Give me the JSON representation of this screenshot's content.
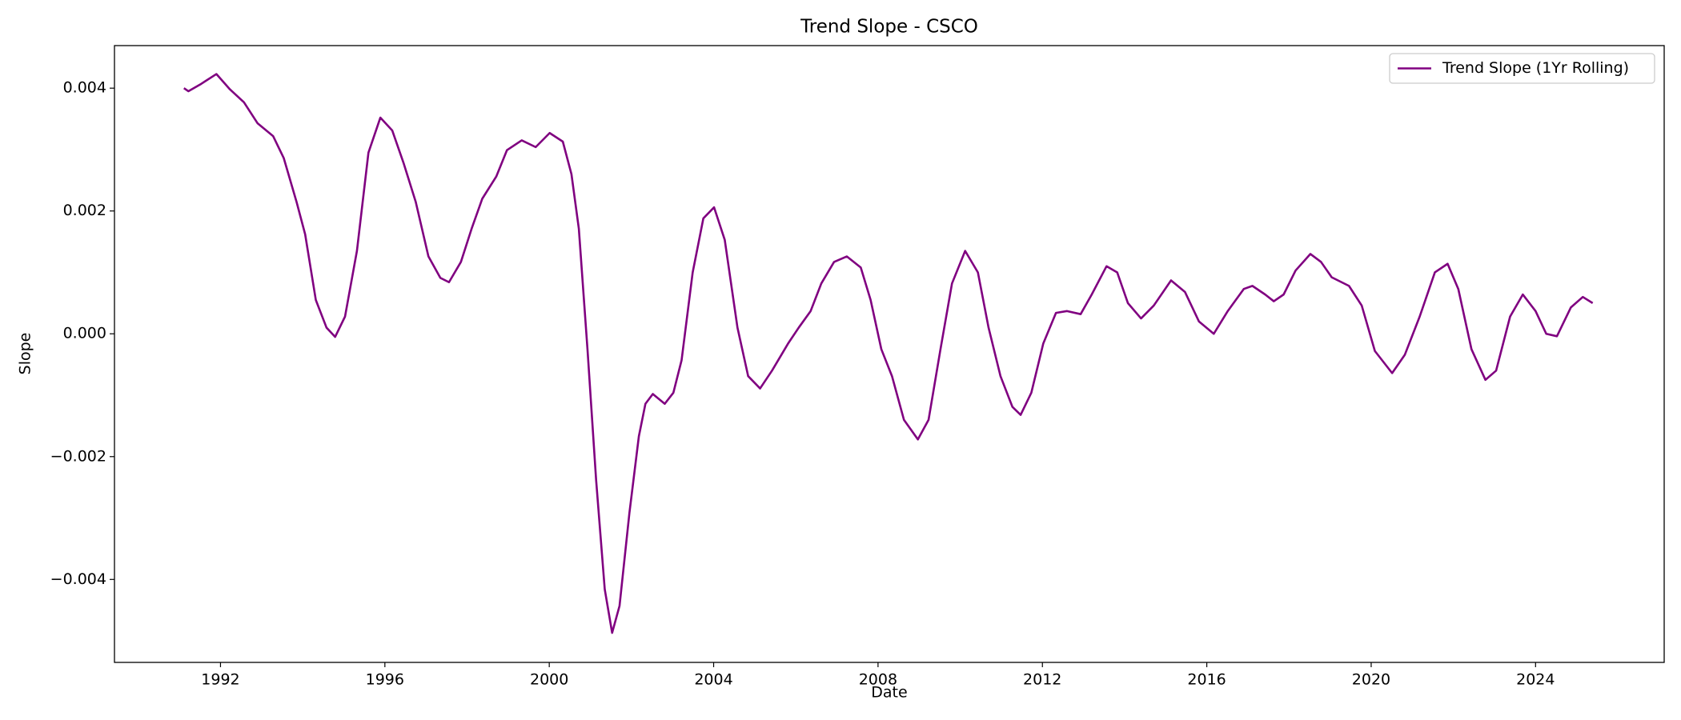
{
  "chart_data": {
    "type": "line",
    "title": "Trend Slope - CSCO",
    "x_label": "Date",
    "y_label": "Slope",
    "x": [
      1991.11,
      1991.22,
      1991.53,
      1991.9,
      1992.23,
      1992.57,
      1992.9,
      1993.28,
      1993.54,
      1993.85,
      1994.06,
      1994.32,
      1994.58,
      1994.79,
      1995.03,
      1995.32,
      1995.6,
      1995.89,
      1996.18,
      1996.46,
      1996.75,
      1997.06,
      1997.35,
      1997.56,
      1997.85,
      1998.11,
      1998.37,
      1998.71,
      1998.97,
      1999.33,
      1999.67,
      2000.01,
      2000.33,
      2000.54,
      2000.72,
      2000.93,
      2001.14,
      2001.35,
      2001.53,
      2001.71,
      2001.95,
      2002.18,
      2002.34,
      2002.52,
      2002.81,
      2003.02,
      2003.22,
      2003.49,
      2003.75,
      2004.01,
      2004.27,
      2004.58,
      2004.84,
      2005.13,
      2005.42,
      2005.81,
      2006.07,
      2006.36,
      2006.62,
      2006.93,
      2007.24,
      2007.58,
      2007.82,
      2008.08,
      2008.34,
      2008.63,
      2008.97,
      2009.23,
      2009.52,
      2009.8,
      2010.12,
      2010.43,
      2010.69,
      2010.98,
      2011.27,
      2011.47,
      2011.73,
      2012.02,
      2012.33,
      2012.6,
      2012.93,
      2013.2,
      2013.56,
      2013.82,
      2014.08,
      2014.4,
      2014.71,
      2015.13,
      2015.47,
      2015.81,
      2016.17,
      2016.51,
      2016.9,
      2017.11,
      2017.42,
      2017.63,
      2017.87,
      2018.16,
      2018.52,
      2018.78,
      2019.04,
      2019.46,
      2019.77,
      2020.09,
      2020.51,
      2020.82,
      2021.18,
      2021.55,
      2021.86,
      2022.12,
      2022.44,
      2022.78,
      2023.04,
      2023.38,
      2023.69,
      2024.0,
      2024.26,
      2024.52,
      2024.86,
      2025.15,
      2025.39
    ],
    "series": [
      {
        "name": "Trend Slope (1Yr Rolling)",
        "color": "#800080",
        "values": [
          0.004,
          0.00395,
          0.00407,
          0.00423,
          0.00398,
          0.00377,
          0.00343,
          0.00322,
          0.00286,
          0.00215,
          0.00162,
          0.00055,
          0.0001,
          -5e-05,
          0.00028,
          0.00135,
          0.00295,
          0.00352,
          0.00331,
          0.00277,
          0.00215,
          0.00126,
          0.00091,
          0.00084,
          0.00117,
          0.00171,
          0.0022,
          0.00256,
          0.00299,
          0.00315,
          0.00304,
          0.00327,
          0.00313,
          0.0026,
          0.00171,
          -0.00025,
          -0.00238,
          -0.00416,
          -0.00487,
          -0.00443,
          -0.00292,
          -0.00167,
          -0.00114,
          -0.00098,
          -0.00114,
          -0.00096,
          -0.00043,
          0.001,
          0.00188,
          0.00206,
          0.00153,
          0.0001,
          -0.00069,
          -0.00089,
          -0.0006,
          -0.00016,
          0.0001,
          0.00037,
          0.00082,
          0.00117,
          0.00126,
          0.00108,
          0.00055,
          -0.00025,
          -0.00069,
          -0.0014,
          -0.00172,
          -0.0014,
          -0.00025,
          0.00082,
          0.00135,
          0.001,
          0.0001,
          -0.00069,
          -0.00119,
          -0.00132,
          -0.00096,
          -0.00016,
          0.00034,
          0.00037,
          0.00032,
          0.00064,
          0.0011,
          0.001,
          0.0005,
          0.00025,
          0.00046,
          0.00087,
          0.00068,
          0.0002,
          0.0,
          0.00037,
          0.00073,
          0.00078,
          0.00064,
          0.00053,
          0.00064,
          0.00103,
          0.0013,
          0.00117,
          0.00092,
          0.00078,
          0.00046,
          -0.00028,
          -0.00064,
          -0.00034,
          0.00028,
          0.001,
          0.00114,
          0.00073,
          -0.00025,
          -0.00075,
          -0.0006,
          0.00028,
          0.00064,
          0.00037,
          0.0,
          -4e-05,
          0.00043,
          0.0006,
          0.0005
        ]
      }
    ],
    "xlim": [
      1989.42,
      2027.13
    ],
    "xticks": [
      1992,
      1996,
      2000,
      2004,
      2008,
      2012,
      2016,
      2020,
      2024
    ],
    "ylim": [
      -0.005351,
      0.004693
    ],
    "yticks": [
      {
        "value": -0.004,
        "label": "−0.004"
      },
      {
        "value": -0.002,
        "label": "−0.002"
      },
      {
        "value": 0,
        "label": "0.000"
      },
      0.002,
      0.004
    ],
    "grid": false,
    "legend": "upper right"
  }
}
